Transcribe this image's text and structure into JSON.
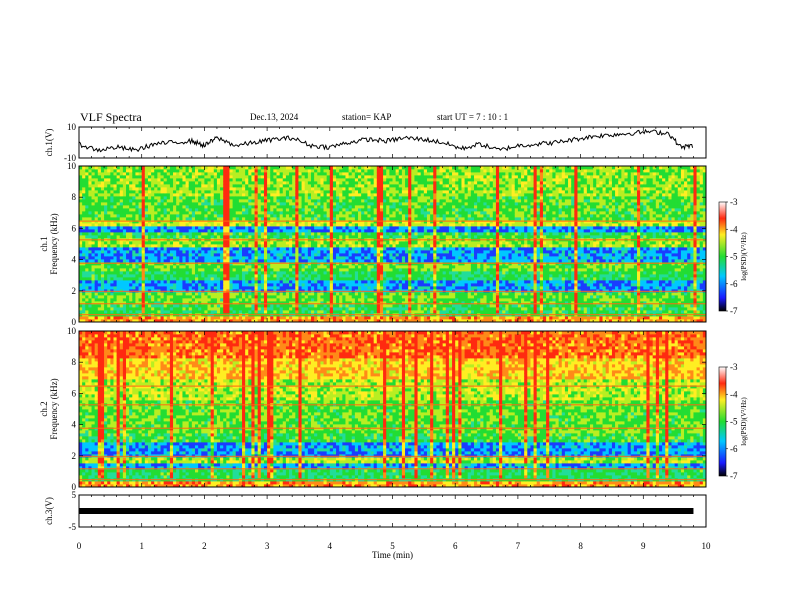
{
  "header": {
    "title": "VLF Spectra",
    "date": "Dec.13, 2024",
    "station": "station= KAP",
    "start_ut": "start  UT  =   7 : 10 : 1"
  },
  "colors": {
    "trace": "#000000",
    "spectrogram_low": "#1a3cff",
    "spectrogram_mid": "#22dd33",
    "spectrogram_high": "#ff2a10"
  },
  "chart_data": [
    {
      "type": "line",
      "panel": "ch1",
      "ylabel": "ch.1(V)",
      "ylim": [
        -10,
        10
      ],
      "ytick_labels": [
        "10",
        "-10"
      ],
      "x": [
        0,
        0.3,
        0.6,
        0.9,
        1.2,
        1.5,
        1.8,
        2.0,
        2.2,
        2.5,
        2.8,
        3.1,
        3.4,
        3.7,
        4.0,
        4.3,
        4.6,
        4.9,
        5.2,
        5.5,
        5.8,
        6.1,
        6.4,
        6.7,
        7.0,
        7.3,
        7.6,
        7.9,
        8.2,
        8.5,
        8.8,
        9.1,
        9.4,
        9.6,
        9.8
      ],
      "y": [
        -1,
        -5,
        -3,
        -5,
        -1,
        0,
        1,
        -2,
        3,
        -2,
        0,
        2,
        3,
        -2,
        -3,
        0,
        2,
        1,
        3,
        2,
        0,
        -4,
        -1,
        -5,
        -2,
        -1,
        0,
        2,
        4,
        5,
        6,
        7,
        6,
        -3,
        -2
      ]
    },
    {
      "type": "heatmap",
      "panel": "ch1",
      "ylabel": "ch.1\nFrequency (kHz)",
      "ylim": [
        0,
        10
      ],
      "ytick_labels": [
        "0",
        "2",
        "4",
        "6",
        "8",
        "10"
      ],
      "colorbar": {
        "range": [
          -7,
          -3
        ],
        "ticks": [
          "-3",
          "-4",
          "-5",
          "-6",
          "-7"
        ],
        "label": "log(PSD)(V²/Hz)"
      }
    },
    {
      "type": "heatmap",
      "panel": "ch2",
      "ylabel": "ch.2\nFrequency (kHz)",
      "ylim": [
        0,
        10
      ],
      "ytick_labels": [
        "0",
        "2",
        "4",
        "6",
        "8",
        "10"
      ],
      "colorbar": {
        "range": [
          -7,
          -3
        ],
        "ticks": [
          "-3",
          "-4",
          "-5",
          "-6",
          "-7"
        ],
        "label": "log(PSD)(V²/Hz)"
      }
    },
    {
      "type": "line",
      "panel": "ch3",
      "ylabel": "ch.3(V)",
      "ylim": [
        -5,
        5
      ],
      "ytick_labels": [
        "5",
        "-5"
      ],
      "x": [
        0,
        9.8
      ],
      "y": [
        0,
        0
      ]
    }
  ],
  "x_axis": {
    "label": "Time (min)",
    "xlim": [
      0,
      10
    ],
    "tick_labels": [
      "0",
      "1",
      "2",
      "3",
      "4",
      "5",
      "6",
      "7",
      "8",
      "9",
      "10"
    ]
  }
}
